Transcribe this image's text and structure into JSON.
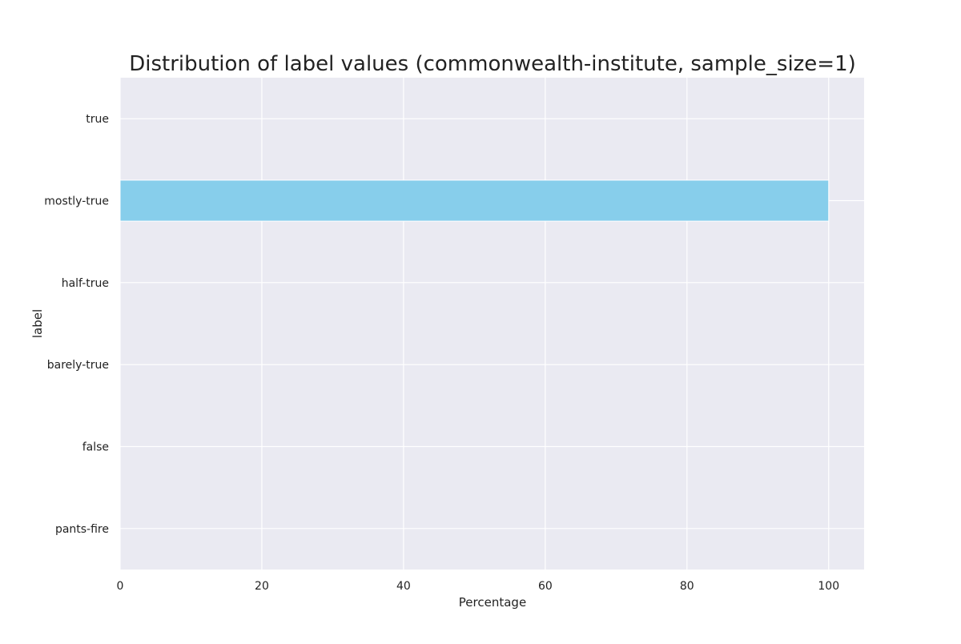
{
  "chart_data": {
    "type": "bar",
    "orientation": "horizontal",
    "title": "Distribution of label values (commonwealth-institute, sample_size=1)",
    "xlabel": "Percentage",
    "ylabel": "label",
    "categories": [
      "true",
      "mostly-true",
      "half-true",
      "barely-true",
      "false",
      "pants-fire"
    ],
    "values": [
      0,
      100,
      0,
      0,
      0,
      0
    ],
    "xlim": [
      0,
      105
    ],
    "xticks": [
      0,
      20,
      40,
      60,
      80,
      100
    ],
    "grid": true,
    "bar_color": "#87CEEB",
    "background_color": "#EAEAF2",
    "grid_color": "#FFFFFF"
  }
}
